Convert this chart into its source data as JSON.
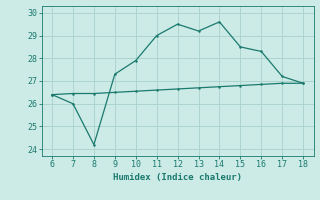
{
  "xlabel": "Humidex (Indice chaleur)",
  "x_main": [
    6,
    7,
    8,
    9,
    10,
    11,
    12,
    13,
    14,
    15,
    16,
    17,
    18
  ],
  "y_main": [
    26.4,
    26.0,
    24.2,
    27.3,
    27.9,
    29.0,
    29.5,
    29.2,
    29.6,
    28.5,
    28.3,
    27.2,
    26.9
  ],
  "x_ref": [
    6,
    7,
    8,
    9,
    10,
    11,
    12,
    13,
    14,
    15,
    16,
    17,
    18
  ],
  "y_ref": [
    26.4,
    26.45,
    26.45,
    26.5,
    26.55,
    26.6,
    26.65,
    26.7,
    26.75,
    26.8,
    26.85,
    26.9,
    26.9
  ],
  "line_color": "#1a7a6e",
  "bg_color": "#cceae6",
  "grid_color": "#aed4cf",
  "xlim": [
    5.5,
    18.5
  ],
  "ylim": [
    23.7,
    30.3
  ],
  "yticks": [
    24,
    25,
    26,
    27,
    28,
    29,
    30
  ],
  "xticks": [
    6,
    7,
    8,
    9,
    10,
    11,
    12,
    13,
    14,
    15,
    16,
    17,
    18
  ]
}
